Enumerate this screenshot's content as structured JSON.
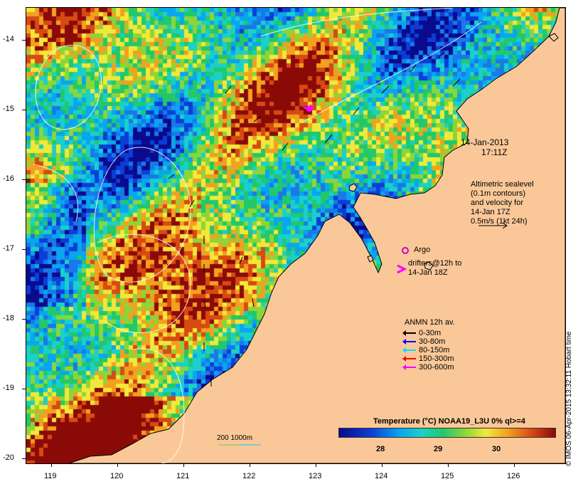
{
  "map": {
    "timestamp_date": "14-Jan-2013",
    "timestamp_time": "17:11Z",
    "altimetry_note": [
      "Altimetric sealevel",
      "(0.1m contours)",
      "and velocity for",
      "14-Jan 17Z",
      "0.5m/s (1kt 24h)"
    ],
    "argo_label": "Argo",
    "drifters_label": [
      "drifters@12h to",
      "14-Jan 18Z"
    ],
    "anmn_title": "ANMN 12h av.",
    "anmn_legend": [
      {
        "label": "0-30m",
        "color": "#000000"
      },
      {
        "label": "30-80m",
        "color": "#0000ff"
      },
      {
        "label": "80-150m",
        "color": "#00e0ff"
      },
      {
        "label": "150-300m",
        "color": "#ff0000"
      },
      {
        "label": "300-600m",
        "color": "#ff00ff"
      }
    ],
    "depth_contours_label": "200  1000m",
    "colorbar_title": "Temperature (°C) NOAA19_L3U 0% ql>=4",
    "colorbar_ticks": [
      "28",
      "29",
      "30"
    ],
    "credit": "© IMOS 06-Apr-2015 13:32:11 Hobart time",
    "x_ticks": [
      "119",
      "120",
      "121",
      "122",
      "123",
      "124",
      "125",
      "126"
    ],
    "y_ticks": [
      "-14",
      "-15",
      "-16",
      "-17",
      "-18",
      "-19",
      "-20"
    ],
    "colors": {
      "land": "#fac898",
      "argo": "#cc00cc",
      "drifter": "#ff00ff"
    }
  }
}
